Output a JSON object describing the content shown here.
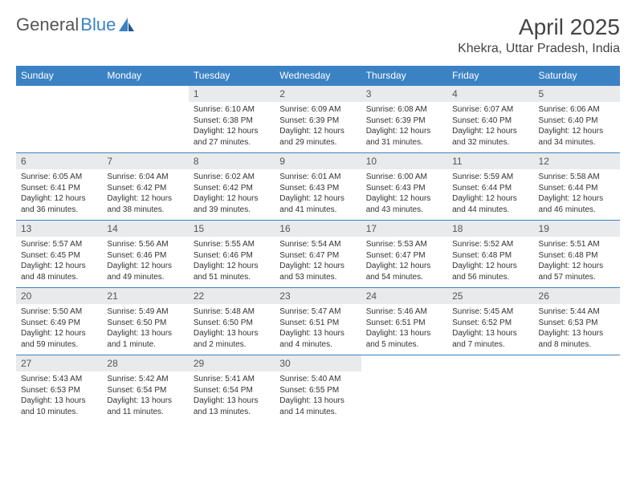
{
  "logo": {
    "part1": "General",
    "part2": "Blue"
  },
  "colors": {
    "brand": "#3b82c4",
    "header_bg": "#3b82c4",
    "header_text": "#ffffff",
    "daynum_bg": "#e9eaeb",
    "row_border": "#3b82c4",
    "text": "#333333",
    "page_bg": "#ffffff"
  },
  "title": "April 2025",
  "location": "Khekra, Uttar Pradesh, India",
  "weekdays": [
    "Sunday",
    "Monday",
    "Tuesday",
    "Wednesday",
    "Thursday",
    "Friday",
    "Saturday"
  ],
  "weeks": [
    [
      null,
      null,
      {
        "n": "1",
        "sr": "Sunrise: 6:10 AM",
        "ss": "Sunset: 6:38 PM",
        "dl": "Daylight: 12 hours and 27 minutes."
      },
      {
        "n": "2",
        "sr": "Sunrise: 6:09 AM",
        "ss": "Sunset: 6:39 PM",
        "dl": "Daylight: 12 hours and 29 minutes."
      },
      {
        "n": "3",
        "sr": "Sunrise: 6:08 AM",
        "ss": "Sunset: 6:39 PM",
        "dl": "Daylight: 12 hours and 31 minutes."
      },
      {
        "n": "4",
        "sr": "Sunrise: 6:07 AM",
        "ss": "Sunset: 6:40 PM",
        "dl": "Daylight: 12 hours and 32 minutes."
      },
      {
        "n": "5",
        "sr": "Sunrise: 6:06 AM",
        "ss": "Sunset: 6:40 PM",
        "dl": "Daylight: 12 hours and 34 minutes."
      }
    ],
    [
      {
        "n": "6",
        "sr": "Sunrise: 6:05 AM",
        "ss": "Sunset: 6:41 PM",
        "dl": "Daylight: 12 hours and 36 minutes."
      },
      {
        "n": "7",
        "sr": "Sunrise: 6:04 AM",
        "ss": "Sunset: 6:42 PM",
        "dl": "Daylight: 12 hours and 38 minutes."
      },
      {
        "n": "8",
        "sr": "Sunrise: 6:02 AM",
        "ss": "Sunset: 6:42 PM",
        "dl": "Daylight: 12 hours and 39 minutes."
      },
      {
        "n": "9",
        "sr": "Sunrise: 6:01 AM",
        "ss": "Sunset: 6:43 PM",
        "dl": "Daylight: 12 hours and 41 minutes."
      },
      {
        "n": "10",
        "sr": "Sunrise: 6:00 AM",
        "ss": "Sunset: 6:43 PM",
        "dl": "Daylight: 12 hours and 43 minutes."
      },
      {
        "n": "11",
        "sr": "Sunrise: 5:59 AM",
        "ss": "Sunset: 6:44 PM",
        "dl": "Daylight: 12 hours and 44 minutes."
      },
      {
        "n": "12",
        "sr": "Sunrise: 5:58 AM",
        "ss": "Sunset: 6:44 PM",
        "dl": "Daylight: 12 hours and 46 minutes."
      }
    ],
    [
      {
        "n": "13",
        "sr": "Sunrise: 5:57 AM",
        "ss": "Sunset: 6:45 PM",
        "dl": "Daylight: 12 hours and 48 minutes."
      },
      {
        "n": "14",
        "sr": "Sunrise: 5:56 AM",
        "ss": "Sunset: 6:46 PM",
        "dl": "Daylight: 12 hours and 49 minutes."
      },
      {
        "n": "15",
        "sr": "Sunrise: 5:55 AM",
        "ss": "Sunset: 6:46 PM",
        "dl": "Daylight: 12 hours and 51 minutes."
      },
      {
        "n": "16",
        "sr": "Sunrise: 5:54 AM",
        "ss": "Sunset: 6:47 PM",
        "dl": "Daylight: 12 hours and 53 minutes."
      },
      {
        "n": "17",
        "sr": "Sunrise: 5:53 AM",
        "ss": "Sunset: 6:47 PM",
        "dl": "Daylight: 12 hours and 54 minutes."
      },
      {
        "n": "18",
        "sr": "Sunrise: 5:52 AM",
        "ss": "Sunset: 6:48 PM",
        "dl": "Daylight: 12 hours and 56 minutes."
      },
      {
        "n": "19",
        "sr": "Sunrise: 5:51 AM",
        "ss": "Sunset: 6:48 PM",
        "dl": "Daylight: 12 hours and 57 minutes."
      }
    ],
    [
      {
        "n": "20",
        "sr": "Sunrise: 5:50 AM",
        "ss": "Sunset: 6:49 PM",
        "dl": "Daylight: 12 hours and 59 minutes."
      },
      {
        "n": "21",
        "sr": "Sunrise: 5:49 AM",
        "ss": "Sunset: 6:50 PM",
        "dl": "Daylight: 13 hours and 1 minute."
      },
      {
        "n": "22",
        "sr": "Sunrise: 5:48 AM",
        "ss": "Sunset: 6:50 PM",
        "dl": "Daylight: 13 hours and 2 minutes."
      },
      {
        "n": "23",
        "sr": "Sunrise: 5:47 AM",
        "ss": "Sunset: 6:51 PM",
        "dl": "Daylight: 13 hours and 4 minutes."
      },
      {
        "n": "24",
        "sr": "Sunrise: 5:46 AM",
        "ss": "Sunset: 6:51 PM",
        "dl": "Daylight: 13 hours and 5 minutes."
      },
      {
        "n": "25",
        "sr": "Sunrise: 5:45 AM",
        "ss": "Sunset: 6:52 PM",
        "dl": "Daylight: 13 hours and 7 minutes."
      },
      {
        "n": "26",
        "sr": "Sunrise: 5:44 AM",
        "ss": "Sunset: 6:53 PM",
        "dl": "Daylight: 13 hours and 8 minutes."
      }
    ],
    [
      {
        "n": "27",
        "sr": "Sunrise: 5:43 AM",
        "ss": "Sunset: 6:53 PM",
        "dl": "Daylight: 13 hours and 10 minutes."
      },
      {
        "n": "28",
        "sr": "Sunrise: 5:42 AM",
        "ss": "Sunset: 6:54 PM",
        "dl": "Daylight: 13 hours and 11 minutes."
      },
      {
        "n": "29",
        "sr": "Sunrise: 5:41 AM",
        "ss": "Sunset: 6:54 PM",
        "dl": "Daylight: 13 hours and 13 minutes."
      },
      {
        "n": "30",
        "sr": "Sunrise: 5:40 AM",
        "ss": "Sunset: 6:55 PM",
        "dl": "Daylight: 13 hours and 14 minutes."
      },
      null,
      null,
      null
    ]
  ]
}
